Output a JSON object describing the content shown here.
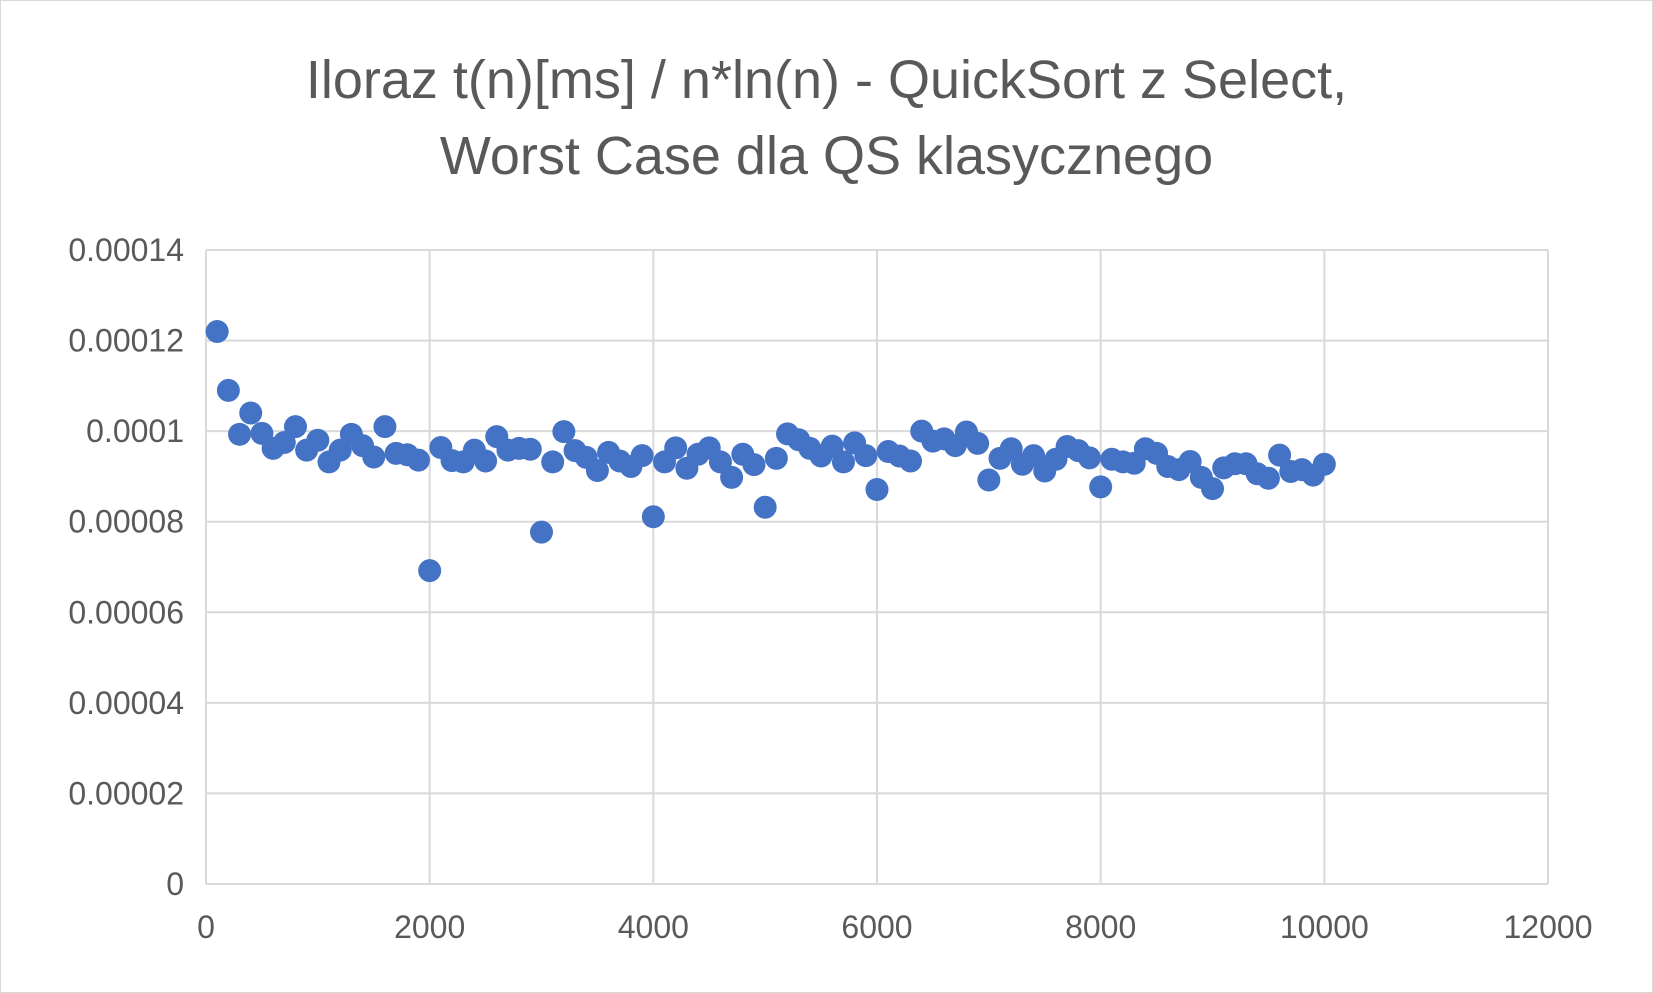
{
  "chart_data": {
    "type": "scatter",
    "title": [
      "Iloraz t(n)[ms] / n*ln(n) - QuickSort z Select,",
      "Worst Case dla QS klasycznego"
    ],
    "xlabel": "",
    "ylabel": "",
    "xlim": [
      0,
      12000
    ],
    "ylim": [
      0,
      0.00014
    ],
    "x_ticks": [
      0,
      2000,
      4000,
      6000,
      8000,
      10000,
      12000
    ],
    "x_tick_labels": [
      "0",
      "2000",
      "4000",
      "6000",
      "8000",
      "10000",
      "12000"
    ],
    "y_ticks": [
      0,
      2e-05,
      4e-05,
      6e-05,
      8e-05,
      0.0001,
      0.00012,
      0.00014
    ],
    "y_tick_labels": [
      "0",
      "0.00002",
      "0.00004",
      "0.00006",
      "0.00008",
      "0.0001",
      "0.00012",
      "0.00014"
    ],
    "grid": true,
    "legend": "none",
    "series": [
      {
        "color": "#4472c4",
        "points": [
          [
            100,
            0.000122
          ],
          [
            200,
            0.000109
          ],
          [
            300,
            9.93e-05
          ],
          [
            400,
            0.000104
          ],
          [
            500,
            9.95e-05
          ],
          [
            600,
            9.62e-05
          ],
          [
            700,
            9.75e-05
          ],
          [
            800,
            0.000101
          ],
          [
            900,
            9.58e-05
          ],
          [
            1000,
            9.8e-05
          ],
          [
            1100,
            9.32e-05
          ],
          [
            1200,
            9.58e-05
          ],
          [
            1300,
            9.93e-05
          ],
          [
            1400,
            9.68e-05
          ],
          [
            1500,
            9.43e-05
          ],
          [
            1600,
            0.000101
          ],
          [
            1700,
            9.51e-05
          ],
          [
            1800,
            9.48e-05
          ],
          [
            1900,
            9.36e-05
          ],
          [
            2000,
            6.92e-05
          ],
          [
            2100,
            9.64e-05
          ],
          [
            2200,
            9.35e-05
          ],
          [
            2300,
            9.32e-05
          ],
          [
            2400,
            9.58e-05
          ],
          [
            2500,
            9.34e-05
          ],
          [
            2600,
            9.88e-05
          ],
          [
            2700,
            9.58e-05
          ],
          [
            2800,
            9.62e-05
          ],
          [
            2900,
            9.6e-05
          ],
          [
            3000,
            7.77e-05
          ],
          [
            3100,
            9.32e-05
          ],
          [
            3200,
            9.99e-05
          ],
          [
            3300,
            9.57e-05
          ],
          [
            3400,
            9.42e-05
          ],
          [
            3500,
            9.13e-05
          ],
          [
            3600,
            9.53e-05
          ],
          [
            3700,
            9.34e-05
          ],
          [
            3800,
            9.22e-05
          ],
          [
            3900,
            9.46e-05
          ],
          [
            4000,
            8.11e-05
          ],
          [
            4100,
            9.32e-05
          ],
          [
            4200,
            9.63e-05
          ],
          [
            4300,
            9.18e-05
          ],
          [
            4400,
            9.49e-05
          ],
          [
            4500,
            9.63e-05
          ],
          [
            4600,
            9.32e-05
          ],
          [
            4700,
            8.98e-05
          ],
          [
            4800,
            9.49e-05
          ],
          [
            4900,
            9.26e-05
          ],
          [
            5000,
            8.32e-05
          ],
          [
            5100,
            9.4e-05
          ],
          [
            5200,
            9.94e-05
          ],
          [
            5300,
            9.81e-05
          ],
          [
            5400,
            9.62e-05
          ],
          [
            5500,
            9.45e-05
          ],
          [
            5600,
            9.67e-05
          ],
          [
            5700,
            9.32e-05
          ],
          [
            5800,
            9.74e-05
          ],
          [
            5900,
            9.46e-05
          ],
          [
            6000,
            8.71e-05
          ],
          [
            6100,
            9.55e-05
          ],
          [
            6200,
            9.45e-05
          ],
          [
            6300,
            9.34e-05
          ],
          [
            6400,
            0.0001
          ],
          [
            6500,
            9.78e-05
          ],
          [
            6600,
            9.83e-05
          ],
          [
            6700,
            9.68e-05
          ],
          [
            6800,
            9.98e-05
          ],
          [
            6900,
            9.73e-05
          ],
          [
            7000,
            8.92e-05
          ],
          [
            7100,
            9.4e-05
          ],
          [
            7200,
            9.61e-05
          ],
          [
            7300,
            9.27e-05
          ],
          [
            7400,
            9.46e-05
          ],
          [
            7500,
            9.12e-05
          ],
          [
            7600,
            9.38e-05
          ],
          [
            7700,
            9.66e-05
          ],
          [
            7800,
            9.57e-05
          ],
          [
            7900,
            9.41e-05
          ],
          [
            8000,
            8.77e-05
          ],
          [
            8100,
            9.38e-05
          ],
          [
            8200,
            9.32e-05
          ],
          [
            8300,
            9.29e-05
          ],
          [
            8400,
            9.61e-05
          ],
          [
            8500,
            9.51e-05
          ],
          [
            8600,
            9.22e-05
          ],
          [
            8700,
            9.15e-05
          ],
          [
            8800,
            9.33e-05
          ],
          [
            8900,
            8.98e-05
          ],
          [
            9000,
            8.73e-05
          ],
          [
            9100,
            9.19e-05
          ],
          [
            9200,
            9.28e-05
          ],
          [
            9300,
            9.28e-05
          ],
          [
            9400,
            9.06e-05
          ],
          [
            9500,
            8.96e-05
          ],
          [
            9600,
            9.47e-05
          ],
          [
            9700,
            9.11e-05
          ],
          [
            9800,
            9.15e-05
          ],
          [
            9900,
            9.03e-05
          ],
          [
            10000,
            9.27e-05
          ]
        ]
      }
    ]
  }
}
